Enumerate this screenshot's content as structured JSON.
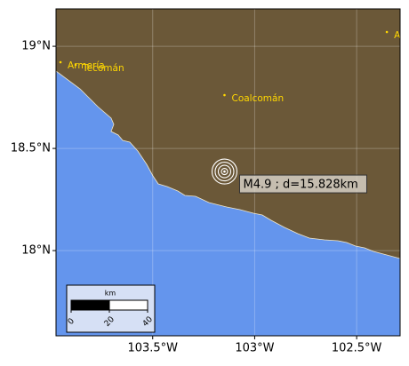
{
  "map": {
    "xlim": [
      -103.974,
      -102.287
    ],
    "ylim": [
      17.583,
      19.183
    ],
    "xticks": [
      {
        "value": -103.5,
        "label": "103.5°W"
      },
      {
        "value": -103,
        "label": "103°W"
      },
      {
        "value": -102.5,
        "label": "102.5°W"
      }
    ],
    "yticks": [
      {
        "value": 18,
        "label": "18°N"
      },
      {
        "value": 18.5,
        "label": "18.5°N"
      },
      {
        "value": 19,
        "label": "19°N"
      }
    ],
    "grid": true,
    "land_color": "#6b5838",
    "ocean_color": "#6495ed",
    "cities": [
      {
        "name": "Armería",
        "lon": -103.952,
        "lat": 18.922
      },
      {
        "name": "Tecomán",
        "lon": -103.878,
        "lat": 18.909
      },
      {
        "name": "Coalcomán",
        "lon": -103.148,
        "lat": 18.761
      },
      {
        "name": "A",
        "lon": -102.352,
        "lat": 19.07
      }
    ],
    "city_color": "#ffd700",
    "earthquake": {
      "lon": -103.148,
      "lat": 18.387,
      "label": "M4.9 ; d=15.828km"
    },
    "scale_bar": {
      "unit": "km",
      "ticks": [
        0,
        20,
        40
      ]
    }
  }
}
